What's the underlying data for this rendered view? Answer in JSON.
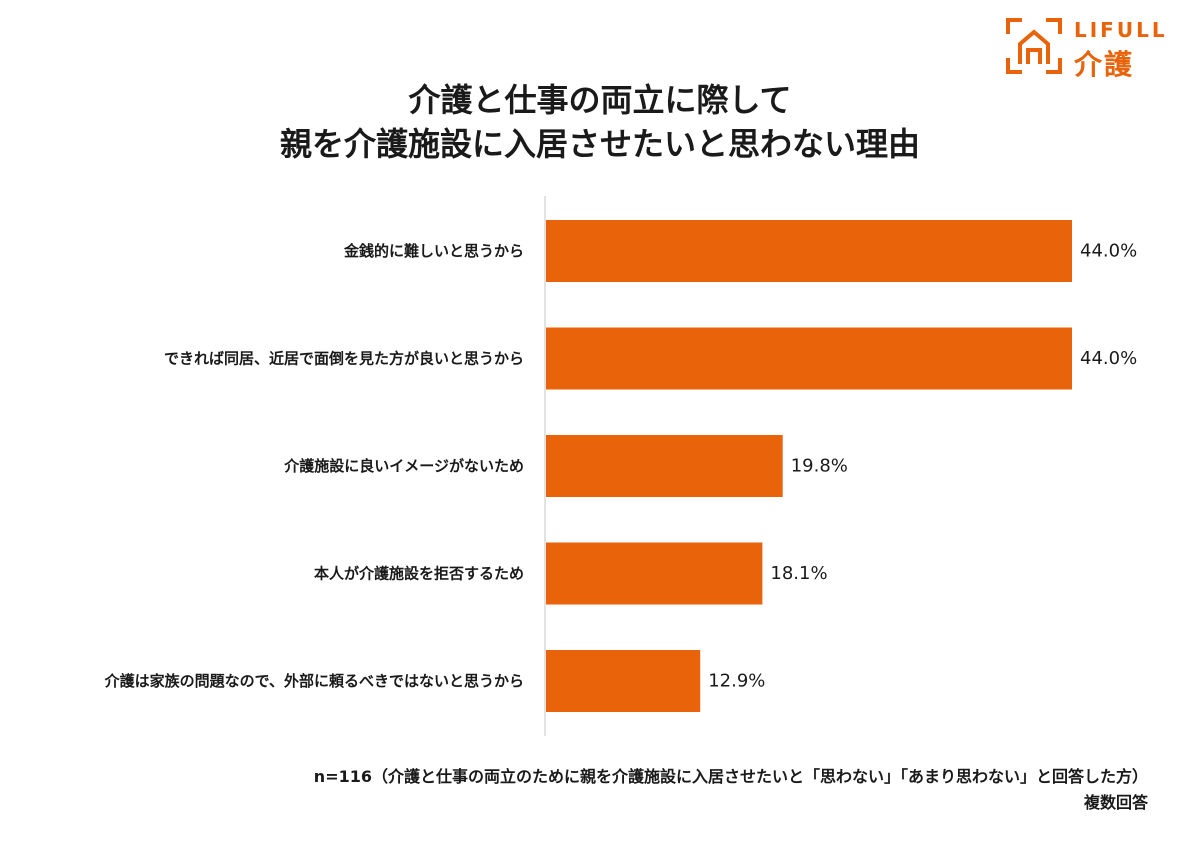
{
  "logo": {
    "en": "LIFULL",
    "ja": "介護",
    "color": "#e8630a"
  },
  "title": {
    "line1": "介護と仕事の両立に際して",
    "line2": "親を介護施設に入居させたいと思わない理由"
  },
  "chart_data": {
    "type": "bar",
    "orientation": "horizontal",
    "categories": [
      "金銭的に難しいと思うから",
      "できれば同居、近居で面倒を見た方が良いと思うから",
      "介護施設に良いイメージがないため",
      "本人が介護施設を拒否するため",
      "介護は家族の問題なので、外部に頼るべきではないと思うから"
    ],
    "values": [
      44.0,
      44.0,
      19.8,
      18.1,
      12.9
    ],
    "value_labels": [
      "44.0%",
      "44.0%",
      "19.8%",
      "18.1%",
      "12.9%"
    ],
    "unit": "%",
    "bar_color": "#e8630a",
    "xlim": [
      0,
      50
    ],
    "grid": false
  },
  "footnote": {
    "sample": "n=116（介護と仕事の両立のために親を介護施設に入居させたいと「思わない」「あまり思わない」と回答した方）",
    "answer_type": "複数回答"
  }
}
